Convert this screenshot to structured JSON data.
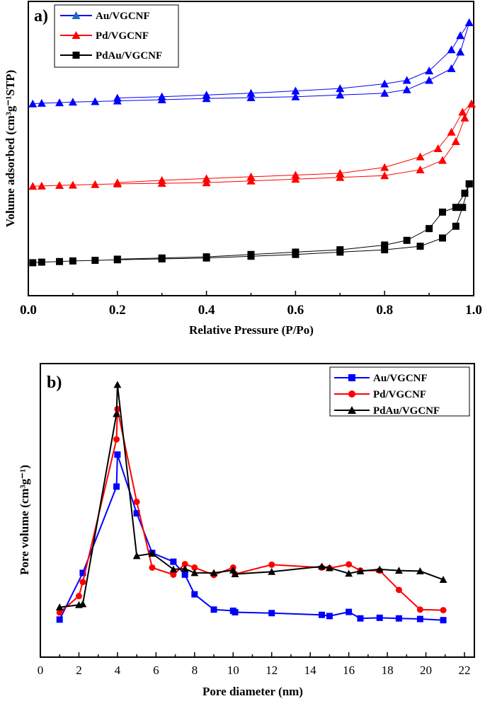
{
  "chart_data": [
    {
      "type": "line",
      "panel_label": "a)",
      "xlabel": "Relative Pressure (P/Po)",
      "ylabel": "Volume adsorbed (cm³g⁻¹STP)",
      "xlim": [
        0,
        1
      ],
      "ylim_relative": [
        0,
        100
      ],
      "y_ticks_shown": false,
      "xticks": [
        "0.0",
        "0.2",
        "0.4",
        "0.6",
        "0.8",
        "1.0"
      ],
      "legend": "top-left",
      "series": [
        {
          "name": "Au/VGCNF",
          "color": "#0000ff",
          "marker": "triangle",
          "adsorption": {
            "x": [
              0.01,
              0.03,
              0.07,
              0.1,
              0.15,
              0.2,
              0.3,
              0.4,
              0.5,
              0.6,
              0.7,
              0.8,
              0.85,
              0.9,
              0.95,
              0.97,
              0.99
            ],
            "y": [
              65.2,
              65.4,
              65.6,
              65.8,
              66.0,
              66.2,
              66.6,
              67.0,
              67.3,
              67.6,
              68.2,
              68.8,
              70.0,
              73.2,
              77.2,
              82.8,
              92.8
            ]
          },
          "desorption": {
            "x": [
              0.99,
              0.97,
              0.95,
              0.9,
              0.85,
              0.8,
              0.7,
              0.6,
              0.5,
              0.4,
              0.3,
              0.2
            ],
            "y": [
              92.8,
              88.4,
              83.6,
              76.4,
              73.2,
              72.0,
              70.4,
              69.6,
              68.8,
              68.2,
              67.6,
              67.2
            ]
          }
        },
        {
          "name": "Pd/VGCNF",
          "color": "#ff0000",
          "marker": "triangle",
          "adsorption": {
            "x": [
              0.01,
              0.03,
              0.07,
              0.1,
              0.15,
              0.2,
              0.3,
              0.4,
              0.5,
              0.6,
              0.7,
              0.8,
              0.88,
              0.93,
              0.96,
              0.98,
              0.995
            ],
            "y": [
              37.2,
              37.3,
              37.5,
              37.6,
              37.8,
              38.0,
              38.2,
              38.4,
              39.0,
              39.6,
              40.2,
              40.8,
              42.8,
              46.0,
              52.4,
              60.4,
              65.2
            ]
          },
          "desorption": {
            "x": [
              0.995,
              0.975,
              0.95,
              0.92,
              0.88,
              0.8,
              0.7,
              0.6,
              0.5,
              0.4,
              0.3,
              0.2
            ],
            "y": [
              65.2,
              62.4,
              55.6,
              50.0,
              47.2,
              43.6,
              41.6,
              41.0,
              40.4,
              39.8,
              39.2,
              38.4
            ]
          }
        },
        {
          "name": "PdAu/VGCNF",
          "color": "#000000",
          "marker": "square",
          "adsorption": {
            "x": [
              0.01,
              0.03,
              0.07,
              0.1,
              0.15,
              0.2,
              0.3,
              0.4,
              0.5,
              0.6,
              0.7,
              0.8,
              0.88,
              0.93,
              0.96,
              0.975,
              0.99
            ],
            "y": [
              11.2,
              11.4,
              11.6,
              11.8,
              12.0,
              12.2,
              12.5,
              12.8,
              13.4,
              14.0,
              14.8,
              15.6,
              16.8,
              19.6,
              23.6,
              30.0,
              38.0
            ]
          },
          "desorption": {
            "x": [
              0.99,
              0.98,
              0.96,
              0.93,
              0.9,
              0.85,
              0.8,
              0.7,
              0.6,
              0.5,
              0.4,
              0.3,
              0.2
            ],
            "y": [
              38.0,
              34.8,
              30.0,
              28.4,
              22.8,
              18.8,
              17.2,
              15.6,
              14.8,
              14.0,
              13.2,
              12.8,
              12.4
            ]
          }
        }
      ]
    },
    {
      "type": "line",
      "panel_label": "b)",
      "xlabel": "Pore diameter (nm)",
      "ylabel": "Pore volume (cm³g⁻¹)",
      "xlim": [
        0,
        22
      ],
      "ylim_relative": [
        0,
        100
      ],
      "y_ticks_shown": false,
      "xticks": [
        "0",
        "2",
        "4",
        "6",
        "8",
        "10",
        "12",
        "14",
        "16",
        "18",
        "20",
        "22"
      ],
      "legend": "top-right",
      "series": [
        {
          "name": "Au/VGCNF",
          "color": "#0000ff",
          "marker": "square",
          "x": [
            1,
            2.2,
            3.95,
            4,
            5,
            5.8,
            6.9,
            7.5,
            8,
            9,
            10,
            10.1,
            12,
            14.6,
            15,
            16,
            16.6,
            17.6,
            18.6,
            19.7,
            20.9
          ],
          "y": [
            12.8,
            28.7,
            58.1,
            69.0,
            49.0,
            35.5,
            32.5,
            28.1,
            21.4,
            16.2,
            15.8,
            15.3,
            15.0,
            14.4,
            14.0,
            15.4,
            13.2,
            13.4,
            13.2,
            13.0,
            12.6
          ]
        },
        {
          "name": "Pd/VGCNF",
          "color": "#ff0000",
          "marker": "circle",
          "x": [
            1,
            2,
            2.2,
            3.95,
            4,
            5,
            5.8,
            6.9,
            7.5,
            8,
            9,
            10,
            10.1,
            12,
            14.6,
            15,
            16,
            16.6,
            17.6,
            18.6,
            19.7,
            20.9
          ],
          "y": [
            15.2,
            20.8,
            25.6,
            74.2,
            84.5,
            52.9,
            30.5,
            28.1,
            31.7,
            30.5,
            28.0,
            30.5,
            28.3,
            31.5,
            30.5,
            30.3,
            31.6,
            29.5,
            29.5,
            22.9,
            16.2,
            16.0
          ]
        },
        {
          "name": "PdAu/VGCNF",
          "color": "#000000",
          "marker": "triangle",
          "x": [
            1,
            2,
            2.2,
            3.95,
            4,
            5,
            5.8,
            6.9,
            7.5,
            8,
            9,
            10,
            10.1,
            12,
            14.6,
            15,
            16,
            16.6,
            17.6,
            18.6,
            19.7,
            20.9
          ],
          "y": [
            17.0,
            17.8,
            18.1,
            82.9,
            92.8,
            34.5,
            35.3,
            29.9,
            30.1,
            28.7,
            28.7,
            29.6,
            28.3,
            29.1,
            30.9,
            30.4,
            28.5,
            29.3,
            29.9,
            29.5,
            29.3,
            26.4
          ]
        }
      ]
    }
  ]
}
